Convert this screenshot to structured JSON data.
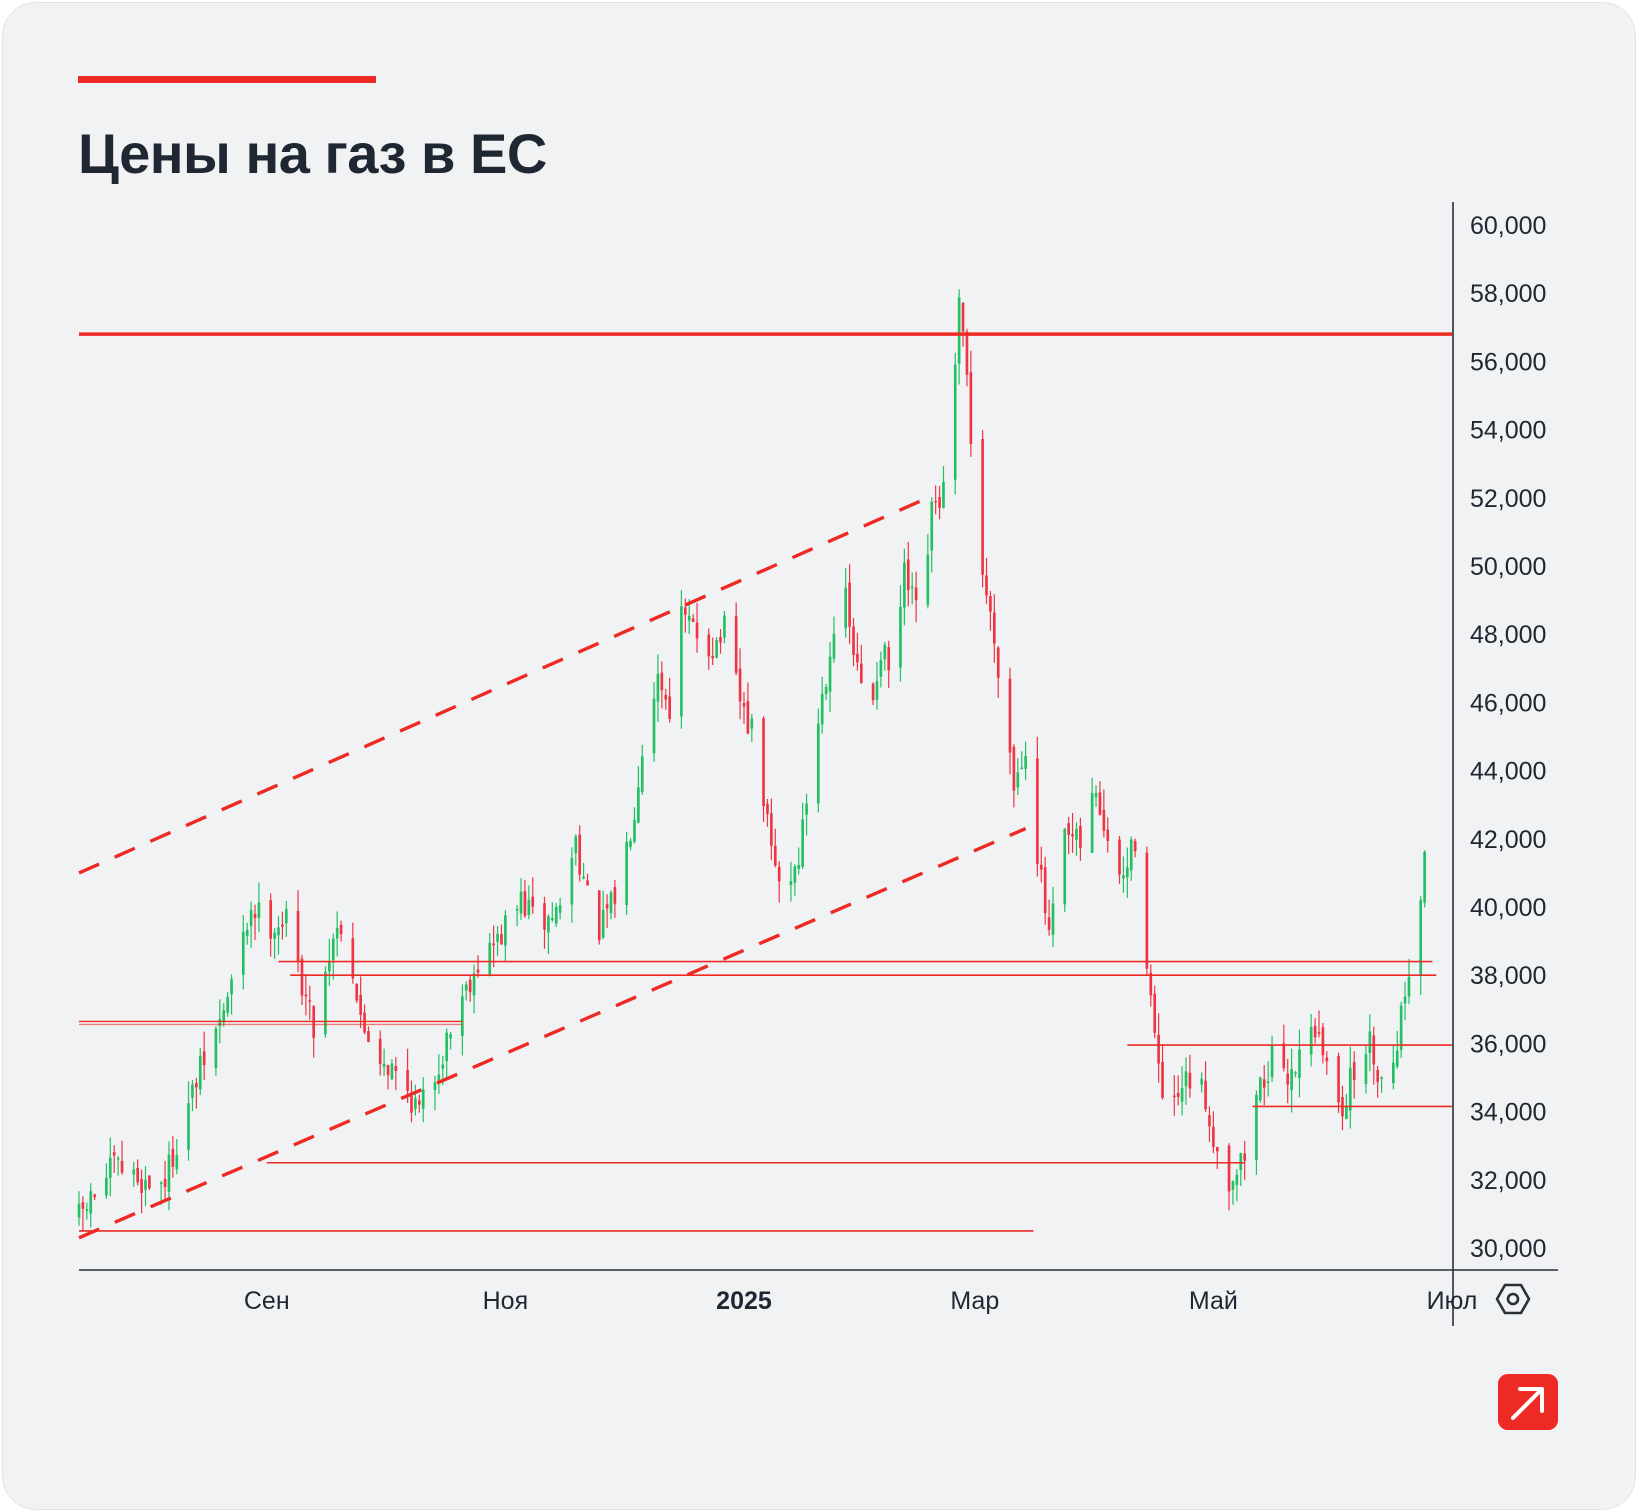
{
  "title": "Цены на газ в ЕС",
  "colors": {
    "accent": "#ee2a24",
    "up": "#22c063",
    "down": "#ef3544",
    "axis": "#2b2f36",
    "text": "#1f2733"
  },
  "icons": {
    "settings": "settings-icon",
    "logo": "arrow-up-right-logo"
  },
  "chart_data": {
    "type": "candlestick",
    "title": "Цены на газ в ЕС",
    "y_tick_labels": [
      "60,000",
      "58,000",
      "56,000",
      "54,000",
      "52,000",
      "50,000",
      "48,000",
      "46,000",
      "44,000",
      "42,000",
      "40,000",
      "38,000",
      "36,000",
      "34,000",
      "32,000",
      "30,000"
    ],
    "y_ticks": [
      60000,
      58000,
      56000,
      54000,
      52000,
      50000,
      48000,
      46000,
      44000,
      42000,
      40000,
      38000,
      36000,
      34000,
      32000,
      30000
    ],
    "ylim": [
      29000,
      61000
    ],
    "x_tick_labels": [
      {
        "label": "Сен",
        "date": "2024-09-01",
        "bold": false
      },
      {
        "label": "Ноя",
        "date": "2024-11-01",
        "bold": false
      },
      {
        "label": "2025",
        "date": "2025-01-01",
        "bold": true
      },
      {
        "label": "Мар",
        "date": "2025-03-01",
        "bold": false
      },
      {
        "label": "Май",
        "date": "2025-05-01",
        "bold": false
      },
      {
        "label": "Июл",
        "date": "2025-07-01",
        "bold": false
      }
    ],
    "x_range": [
      "2024-07-15",
      "2025-07-01"
    ],
    "path": [
      [
        "2024-07-15",
        30900
      ],
      [
        "2024-07-24",
        32400
      ],
      [
        "2024-08-01",
        31900
      ],
      [
        "2024-08-06",
        32000
      ],
      [
        "2024-08-10",
        33500
      ],
      [
        "2024-08-15",
        35200
      ],
      [
        "2024-08-20",
        36600
      ],
      [
        "2024-08-25",
        38500
      ],
      [
        "2024-08-28",
        40000
      ],
      [
        "2024-09-02",
        39500
      ],
      [
        "2024-09-06",
        39600
      ],
      [
        "2024-09-10",
        37800
      ],
      [
        "2024-09-13",
        36500
      ],
      [
        "2024-09-18",
        39200
      ],
      [
        "2024-09-21",
        39700
      ],
      [
        "2024-09-25",
        36600
      ],
      [
        "2024-10-01",
        35500
      ],
      [
        "2024-10-06",
        34800
      ],
      [
        "2024-10-10",
        34000
      ],
      [
        "2024-10-15",
        35400
      ],
      [
        "2024-10-20",
        37200
      ],
      [
        "2024-10-25",
        38400
      ],
      [
        "2024-10-30",
        39000
      ],
      [
        "2024-11-05",
        40200
      ],
      [
        "2024-11-10",
        39400
      ],
      [
        "2024-11-15",
        40000
      ],
      [
        "2024-11-19",
        42000
      ],
      [
        "2024-11-22",
        40200
      ],
      [
        "2024-11-25",
        39300
      ],
      [
        "2024-11-30",
        40500
      ],
      [
        "2024-12-04",
        43000
      ],
      [
        "2024-12-07",
        45600
      ],
      [
        "2024-12-10",
        46800
      ],
      [
        "2024-12-13",
        45900
      ],
      [
        "2024-12-16",
        48500
      ],
      [
        "2024-12-20",
        48000
      ],
      [
        "2024-12-24",
        47600
      ],
      [
        "2024-12-27",
        48100
      ],
      [
        "2024-12-31",
        46000
      ],
      [
        "2025-01-04",
        44800
      ],
      [
        "2025-01-08",
        41600
      ],
      [
        "2025-01-11",
        40300
      ],
      [
        "2025-01-15",
        41500
      ],
      [
        "2025-01-19",
        44800
      ],
      [
        "2025-01-23",
        47600
      ],
      [
        "2025-01-26",
        49700
      ],
      [
        "2025-01-29",
        47400
      ],
      [
        "2025-02-02",
        45500
      ],
      [
        "2025-02-05",
        47600
      ],
      [
        "2025-02-08",
        46600
      ],
      [
        "2025-02-11",
        49700
      ],
      [
        "2025-02-15",
        48200
      ],
      [
        "2025-02-18",
        51500
      ],
      [
        "2025-02-21",
        52200
      ],
      [
        "2025-02-23",
        53800
      ],
      [
        "2025-02-25",
        57500
      ],
      [
        "2025-02-27",
        55500
      ],
      [
        "2025-03-02",
        50500
      ],
      [
        "2025-03-05",
        48500
      ],
      [
        "2025-03-08",
        46500
      ],
      [
        "2025-03-11",
        43600
      ],
      [
        "2025-03-14",
        44800
      ],
      [
        "2025-03-17",
        41600
      ],
      [
        "2025-03-20",
        39000
      ],
      [
        "2025-03-24",
        42000
      ],
      [
        "2025-03-28",
        41800
      ],
      [
        "2025-04-01",
        43500
      ],
      [
        "2025-04-04",
        41600
      ],
      [
        "2025-04-08",
        40800
      ],
      [
        "2025-04-11",
        42000
      ],
      [
        "2025-04-14",
        38500
      ],
      [
        "2025-04-17",
        35000
      ],
      [
        "2025-04-20",
        33700
      ],
      [
        "2025-04-23",
        34600
      ],
      [
        "2025-04-26",
        35000
      ],
      [
        "2025-04-29",
        34300
      ],
      [
        "2025-05-02",
        32800
      ],
      [
        "2025-05-05",
        32000
      ],
      [
        "2025-05-09",
        32700
      ],
      [
        "2025-05-12",
        34500
      ],
      [
        "2025-05-16",
        35500
      ],
      [
        "2025-05-19",
        34900
      ],
      [
        "2025-05-23",
        35600
      ],
      [
        "2025-05-26",
        36800
      ],
      [
        "2025-05-30",
        35300
      ],
      [
        "2025-06-03",
        34200
      ],
      [
        "2025-06-07",
        35500
      ],
      [
        "2025-06-10",
        36000
      ],
      [
        "2025-06-13",
        34900
      ],
      [
        "2025-06-16",
        35600
      ],
      [
        "2025-06-19",
        37500
      ],
      [
        "2025-06-22",
        39800
      ],
      [
        "2025-06-24",
        41300
      ]
    ],
    "support_resistance_lines": [
      {
        "y": 56800,
        "from": "2024-07-15",
        "to": "2025-07-01",
        "weight": "heavy"
      },
      {
        "y": 38400,
        "from": "2024-09-04",
        "to": "2025-06-26",
        "weight": "thin"
      },
      {
        "y": 38000,
        "from": "2024-09-07",
        "to": "2025-06-27",
        "weight": "thin"
      },
      {
        "y": 36600,
        "from": "2024-07-15",
        "to": "2024-10-21",
        "weight": "double"
      },
      {
        "y": 35950,
        "from": "2025-04-09",
        "to": "2025-07-01",
        "weight": "thin"
      },
      {
        "y": 34150,
        "from": "2025-05-11",
        "to": "2025-07-01",
        "weight": "thin"
      },
      {
        "y": 32500,
        "from": "2024-09-01",
        "to": "2025-05-09",
        "weight": "thin"
      },
      {
        "y": 30500,
        "from": "2024-07-15",
        "to": "2025-03-16",
        "weight": "thin"
      }
    ],
    "trend_channel": [
      {
        "from": [
          "2024-07-15",
          41000
        ],
        "to": [
          "2025-02-17",
          52000
        ],
        "style": "dashed"
      },
      {
        "from": [
          "2024-07-15",
          30300
        ],
        "to": [
          "2025-03-14",
          42300
        ],
        "style": "dashed"
      }
    ],
    "grid": false,
    "legend": "none"
  }
}
